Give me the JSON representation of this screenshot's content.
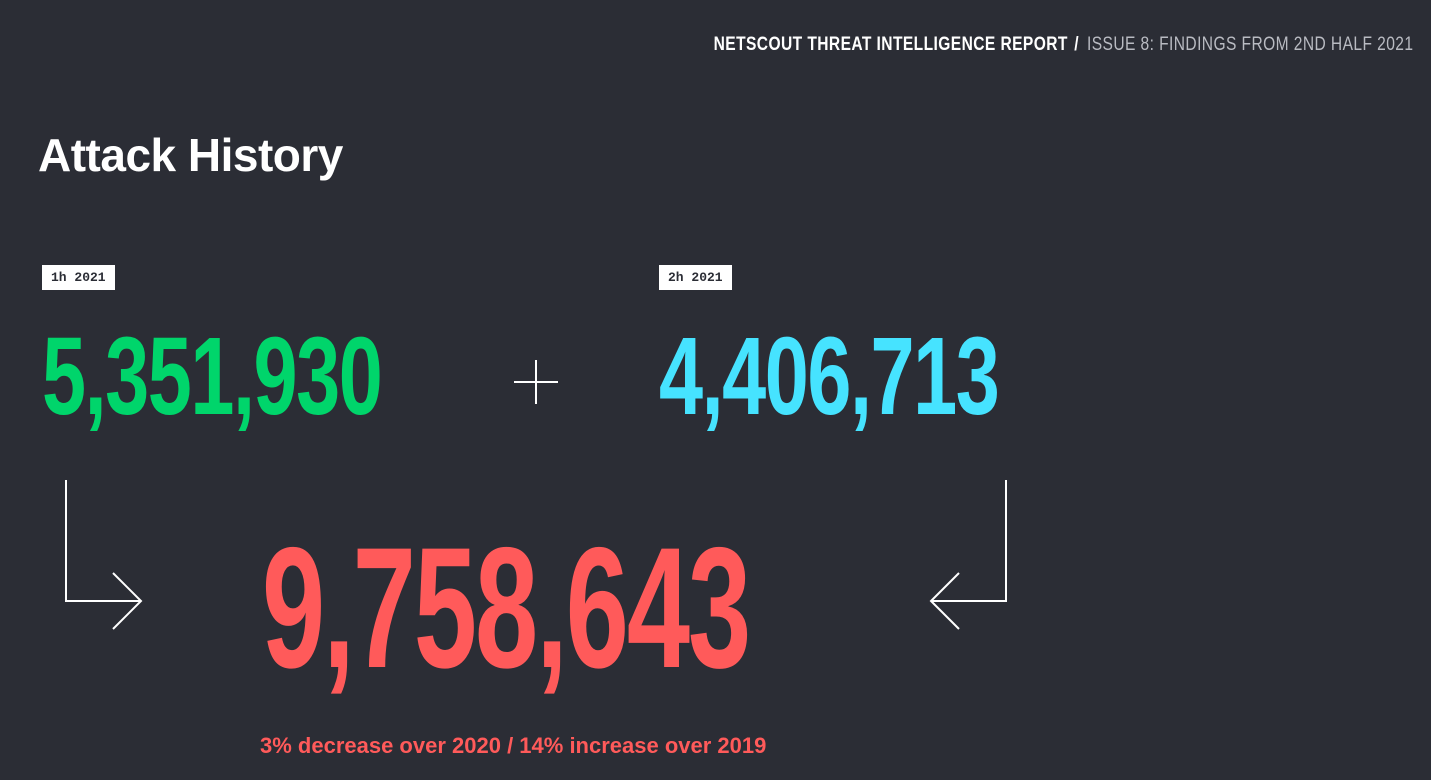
{
  "header": {
    "brand": "NETSCOUT THREAT INTELLIGENCE REPORT",
    "separator": "/",
    "issue": "ISSUE 8: FINDINGS FROM 2ND HALF 2021"
  },
  "page_title": "Attack History",
  "periods": [
    {
      "label": "1h 2021",
      "value": "5,351,930",
      "color": "#00d56b"
    },
    {
      "label": "2h 2021",
      "value": "4,406,713",
      "color": "#46e3ff"
    }
  ],
  "total": {
    "value": "9,758,643",
    "color": "#ff5a5a"
  },
  "comparison": "3% decrease over 2020 / 14% increase over 2019",
  "icons": {
    "plus": "plus-icon",
    "arrow_left": "arrow-down-right-icon",
    "arrow_right": "arrow-down-left-icon"
  }
}
